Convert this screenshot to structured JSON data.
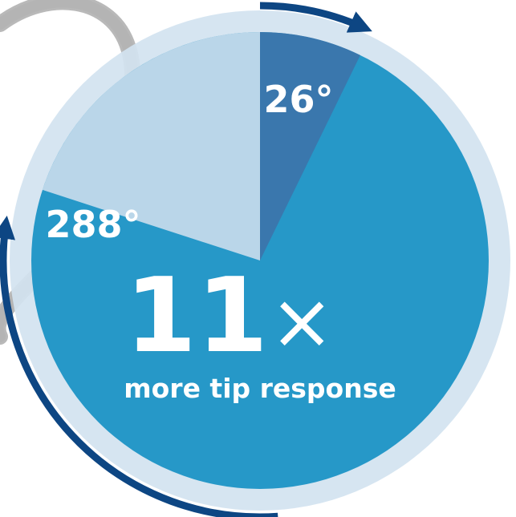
{
  "colors": {
    "outer_ring": "#d3e3f0",
    "full_turn": "#2698c8",
    "remaining_sector": "#c7dbeb",
    "dark_sector": "#3a77ad",
    "arrow": "#0d4683",
    "cable": "#9a9a9a",
    "text": "#ffffff"
  },
  "chart_data": {
    "type": "pie",
    "title": "",
    "subtitle": "",
    "full_turn_degrees": 360,
    "series": [
      {
        "value": 26,
        "label": "26°",
        "color": "#3a77ad"
      },
      {
        "value": 288,
        "label": "288°",
        "color": "#2698c8"
      }
    ],
    "headline": {
      "value": "11",
      "symbol": "×",
      "caption": "more tip response"
    }
  }
}
